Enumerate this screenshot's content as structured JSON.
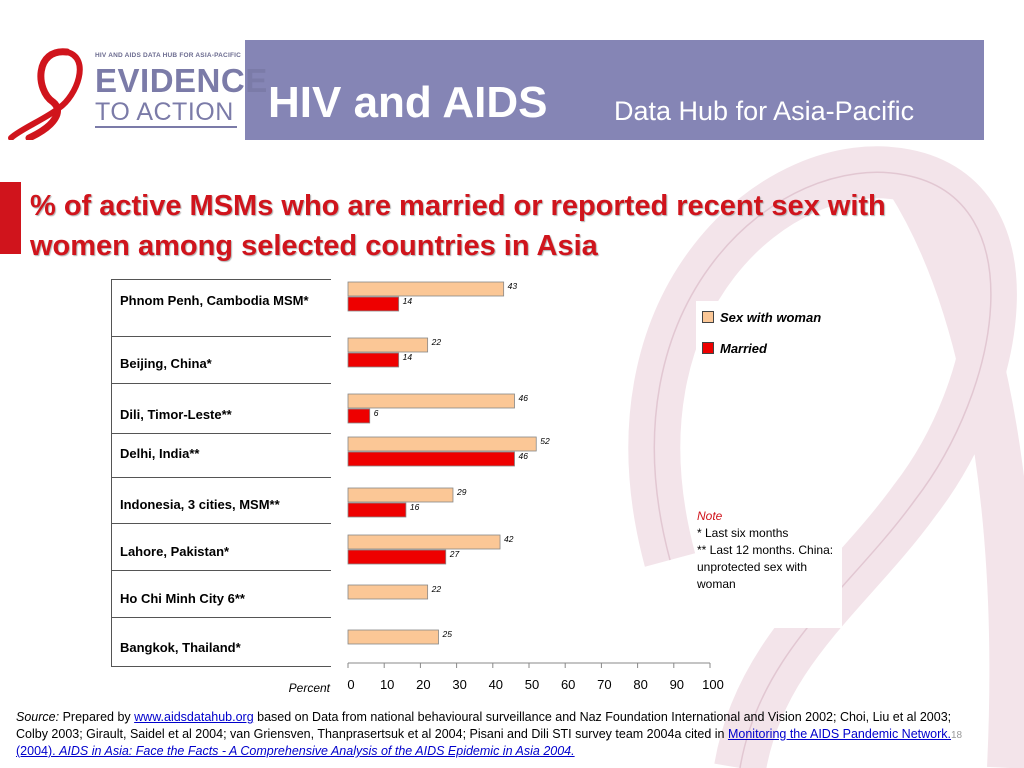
{
  "header": {
    "logo": {
      "small_text": "HIV AND AIDS DATA HUB FOR ASIA-PACIFIC",
      "evidence": "EVIDENCE",
      "to_action": "TO ACTION"
    },
    "title": "HIV and AIDS",
    "subtitle": "Data Hub for Asia-Pacific"
  },
  "colors": {
    "header_bg": "#8585b5",
    "title_red": "#d0141c",
    "sex_with_woman": "#fbc796",
    "married": "#ee0000"
  },
  "slide": {
    "title": "% of active MSMs who are married or reported recent sex with women among selected countries in Asia"
  },
  "chart_data": {
    "type": "bar",
    "orientation": "horizontal",
    "categories": [
      "Phnom Penh, Cambodia MSM*",
      "Beijing, China*",
      "Dili, Timor-Leste**",
      "Delhi, India**",
      "Indonesia, 3 cities, MSM**",
      "Lahore, Pakistan*",
      "Ho Chi Minh City 6**",
      "Bangkok, Thailand*"
    ],
    "series": [
      {
        "name": "Sex with woman",
        "values": [
          43,
          22,
          46,
          52,
          29,
          42,
          22,
          25
        ]
      },
      {
        "name": "Married",
        "values": [
          14,
          14,
          6,
          46,
          16,
          27,
          null,
          null
        ]
      }
    ],
    "xlabel": "Percent",
    "xlim": [
      0,
      100
    ],
    "xticks": [
      0,
      10,
      20,
      30,
      40,
      50,
      60,
      70,
      80,
      90,
      100
    ],
    "legend": "right",
    "grid": false
  },
  "legend": {
    "sex_with_woman": "Sex with woman",
    "married": "Married"
  },
  "note": {
    "title": "Note",
    "line1": "*  Last six months",
    "line2": "** Last 12 months. China: unprotected sex with woman"
  },
  "source": {
    "label": "Source:",
    "prefix": " Prepared by  ",
    "link": "www.aidsdatahub.org",
    "text": " based on Data from national behavioural surveillance and Naz Foundation International and Vision 2002; Choi, Liu et al 2003; Colby 2003; Girault, Saidel et al 2004; van Griensven, Thanprasertsuk et al 2004; Pisani and Dili STI survey team 2004a cited in ",
    "network": "Monitoring the AIDS Pandemic Network. (2004). ",
    "publication": "AIDS in Asia: Face the Facts - A Comprehensive Analysis of the AIDS Epidemic in Asia 2004."
  },
  "page_number": "18"
}
